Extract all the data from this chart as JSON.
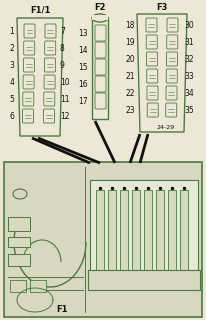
{
  "bg_color": "#ede8d5",
  "line_color": "#4a7a40",
  "dark_line": "#111111",
  "title_F1": "F1/1",
  "title_F2": "F2",
  "title_F3": "F3",
  "F1_left_labels": [
    "1",
    "2",
    "3",
    "4",
    "5",
    "6"
  ],
  "F1_right_labels": [
    "7",
    "8",
    "9",
    "10",
    "11",
    "12"
  ],
  "F2_left_labels": [
    "13",
    "14",
    "15",
    "16",
    "17"
  ],
  "F3_left_labels": [
    "18",
    "19",
    "20",
    "21",
    "22",
    "23"
  ],
  "F3_right_labels": [
    "30",
    "31",
    "32",
    "33",
    "34",
    "35"
  ],
  "F3_bottom_label": "24-29",
  "bottom_label": "F1",
  "box_bg": "#d8d8c0",
  "fuse_bg": "#e8e8d8"
}
